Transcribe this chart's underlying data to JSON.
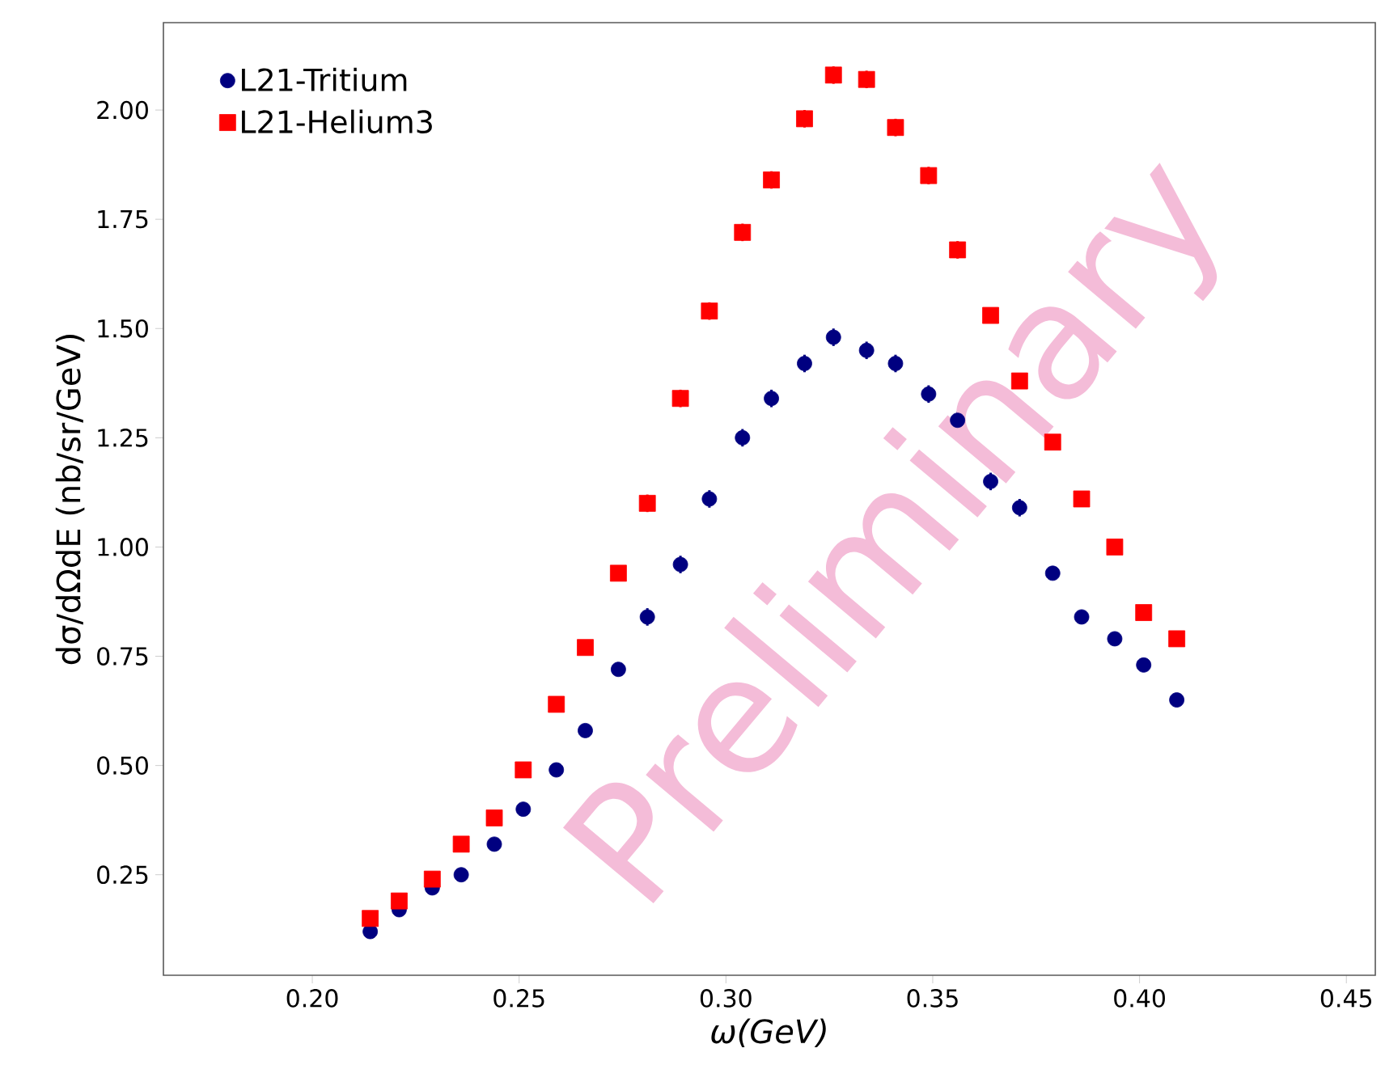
{
  "chart_data": {
    "type": "scatter",
    "xlabel": "*ω(GeV)*",
    "ylabel": "dσ/dΩdE (nb/sr/GeV)",
    "x": [
      0.214,
      0.221,
      0.229,
      0.236,
      0.244,
      0.251,
      0.259,
      0.266,
      0.274,
      0.281,
      0.289,
      0.296,
      0.304,
      0.311,
      0.319,
      0.326,
      0.334,
      0.341,
      0.349,
      0.356,
      0.364,
      0.371,
      0.379,
      0.386,
      0.394,
      0.401,
      0.409
    ],
    "series": [
      {
        "name": "L21-Tritium",
        "color": "#000080",
        "marker": "circle",
        "values": [
          0.12,
          0.17,
          0.22,
          0.25,
          0.32,
          0.4,
          0.49,
          0.58,
          0.72,
          0.84,
          0.96,
          1.11,
          1.25,
          1.34,
          1.42,
          1.48,
          1.45,
          1.42,
          1.35,
          1.29,
          1.15,
          1.09,
          0.94,
          0.84,
          0.79,
          0.73,
          0.65
        ],
        "errors": [
          null,
          null,
          null,
          null,
          null,
          null,
          null,
          null,
          null,
          0.02,
          0.02,
          0.02,
          0.02,
          0.02,
          0.02,
          0.02,
          0.02,
          0.02,
          0.02,
          0.02,
          0.02,
          0.02,
          null,
          null,
          null,
          null,
          null
        ]
      },
      {
        "name": "L21-Helium3",
        "color": "#ff0000",
        "marker": "square",
        "values": [
          0.15,
          0.19,
          0.24,
          0.32,
          0.38,
          0.49,
          0.64,
          0.77,
          0.94,
          1.1,
          1.34,
          1.54,
          1.72,
          1.84,
          1.98,
          2.08,
          2.07,
          1.96,
          1.85,
          1.68,
          1.53,
          1.38,
          1.24,
          1.11,
          1.0,
          0.85,
          0.79
        ],
        "errors": [
          null,
          null,
          null,
          null,
          null,
          null,
          null,
          null,
          null,
          0.02,
          0.02,
          0.02,
          0.02,
          0.02,
          0.02,
          0.02,
          0.02,
          0.02,
          0.02,
          0.02,
          null,
          null,
          null,
          null,
          null,
          null,
          null
        ]
      }
    ],
    "xlim": [
      0.164,
      0.457
    ],
    "xticks": [
      {
        "value": 0.2,
        "label": "0.20"
      },
      {
        "value": 0.25,
        "label": "0.25"
      },
      {
        "value": 0.3,
        "label": "0.30"
      },
      {
        "value": 0.35,
        "label": "0.35"
      },
      {
        "value": 0.4,
        "label": "0.40"
      },
      {
        "value": 0.45,
        "label": "0.45"
      }
    ],
    "ylim": [
      0.02,
      2.2
    ],
    "yticks": [
      {
        "value": 0.25,
        "label": "0.25"
      },
      {
        "value": 0.5,
        "label": "0.50"
      },
      {
        "value": 0.75,
        "label": "0.75"
      },
      {
        "value": 1.0,
        "label": "1.00"
      },
      {
        "value": 1.25,
        "label": "1.25"
      },
      {
        "value": 1.5,
        "label": "1.50"
      },
      {
        "value": 1.75,
        "label": "1.75"
      },
      {
        "value": 2.0,
        "label": "2.00"
      }
    ],
    "legend": "top left",
    "annotations": [
      "Preliminary"
    ]
  }
}
